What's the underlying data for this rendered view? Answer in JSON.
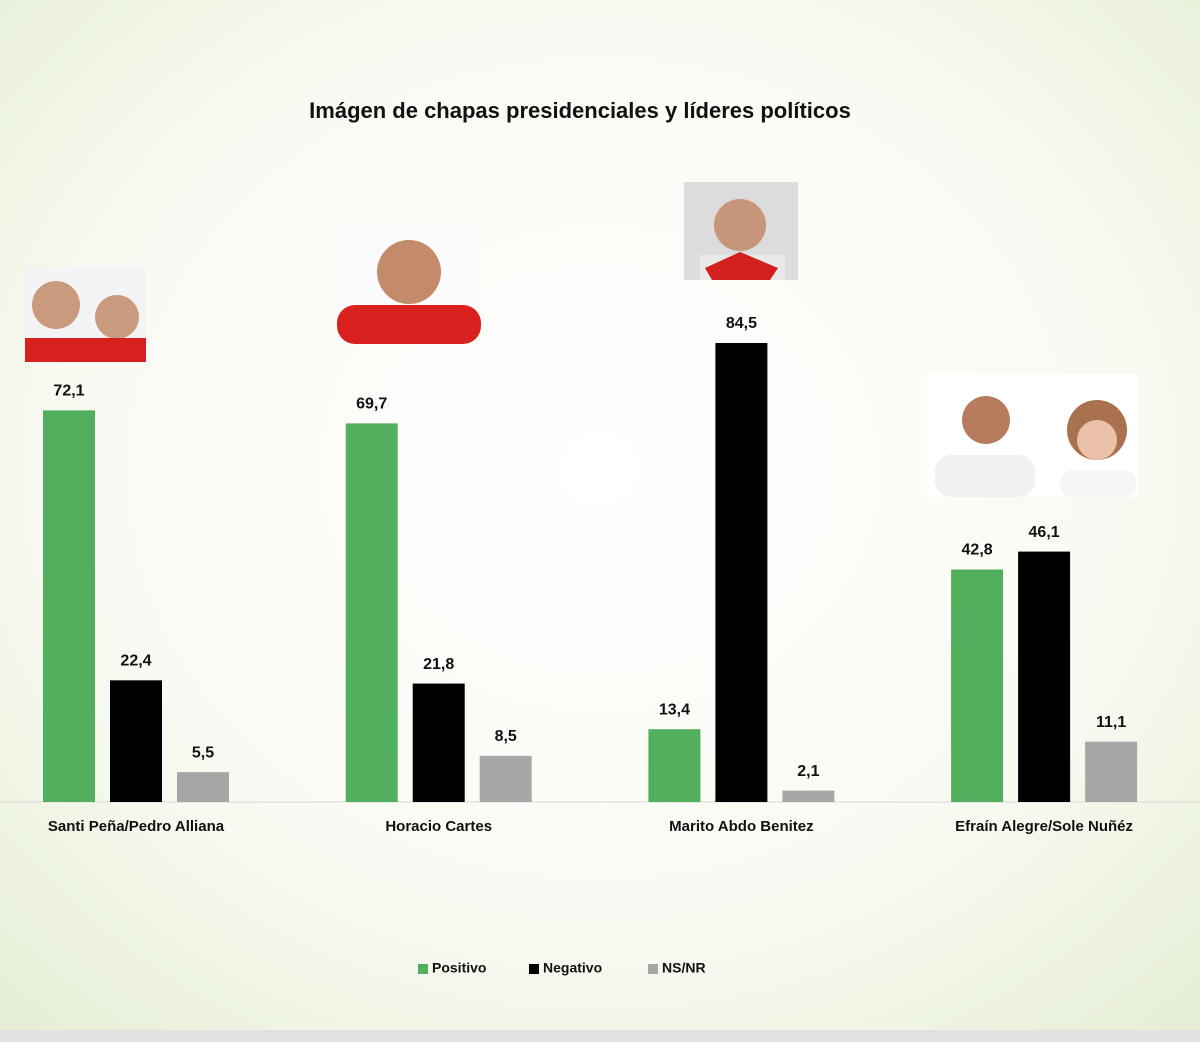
{
  "chart_data": {
    "type": "bar",
    "title": "Imágen de chapas presidenciales y líderes políticos",
    "categories": [
      "Santi Peña/Pedro Alliana",
      "Horacio Cartes",
      "Marito Abdo Benitez",
      "Efraín Alegre/Sole Nuñéz"
    ],
    "series": [
      {
        "name": "Positivo",
        "color": "#52af5d",
        "values": [
          72.1,
          69.7,
          13.4,
          42.8
        ],
        "value_labels": [
          "72,1",
          "69,7",
          "13,4",
          "42,8"
        ]
      },
      {
        "name": "Negativo",
        "color": "#000000",
        "values": [
          22.4,
          21.8,
          84.5,
          46.1
        ],
        "value_labels": [
          "22,4",
          "21,8",
          "84,5",
          "46,1"
        ]
      },
      {
        "name": "NS/NR",
        "color": "#a6a6a6",
        "values": [
          5.5,
          8.5,
          2.1,
          11.1
        ],
        "value_labels": [
          "5,5",
          "8,5",
          "2,1",
          "11,1"
        ]
      }
    ],
    "legend": "bottom"
  }
}
